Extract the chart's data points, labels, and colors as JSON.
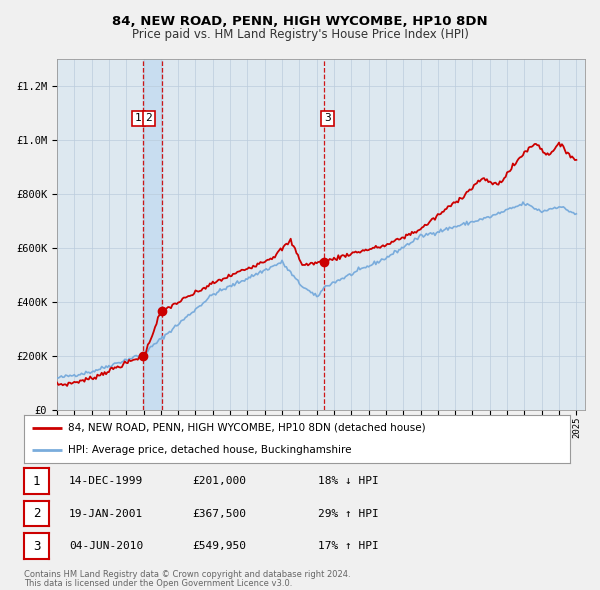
{
  "title": "84, NEW ROAD, PENN, HIGH WYCOMBE, HP10 8DN",
  "subtitle": "Price paid vs. HM Land Registry's House Price Index (HPI)",
  "legend_label_red": "84, NEW ROAD, PENN, HIGH WYCOMBE, HP10 8DN (detached house)",
  "legend_label_blue": "HPI: Average price, detached house, Buckinghamshire",
  "footer_line1": "Contains HM Land Registry data © Crown copyright and database right 2024.",
  "footer_line2": "This data is licensed under the Open Government Licence v3.0.",
  "transactions": [
    {
      "num": 1,
      "date": "14-DEC-1999",
      "price": "£201,000",
      "pct": "18%",
      "dir": "↓",
      "year": 1999.96,
      "price_val": 201000
    },
    {
      "num": 2,
      "date": "19-JAN-2001",
      "price": "£367,500",
      "pct": "29%",
      "dir": "↑",
      "year": 2001.05,
      "price_val": 367500
    },
    {
      "num": 3,
      "date": "04-JUN-2010",
      "price": "£549,950",
      "pct": "17%",
      "dir": "↑",
      "year": 2010.42,
      "price_val": 549950
    }
  ],
  "background_color": "#f0f0f0",
  "plot_bg_color": "#dde8f0",
  "red_color": "#cc0000",
  "blue_color": "#7aacdc",
  "vline_color": "#cc0000",
  "shade_color": "#c8ddf0",
  "grid_color": "#bbccdd",
  "ylim": [
    0,
    1300000
  ],
  "xlim_start": 1995,
  "xlim_end": 2025.5
}
